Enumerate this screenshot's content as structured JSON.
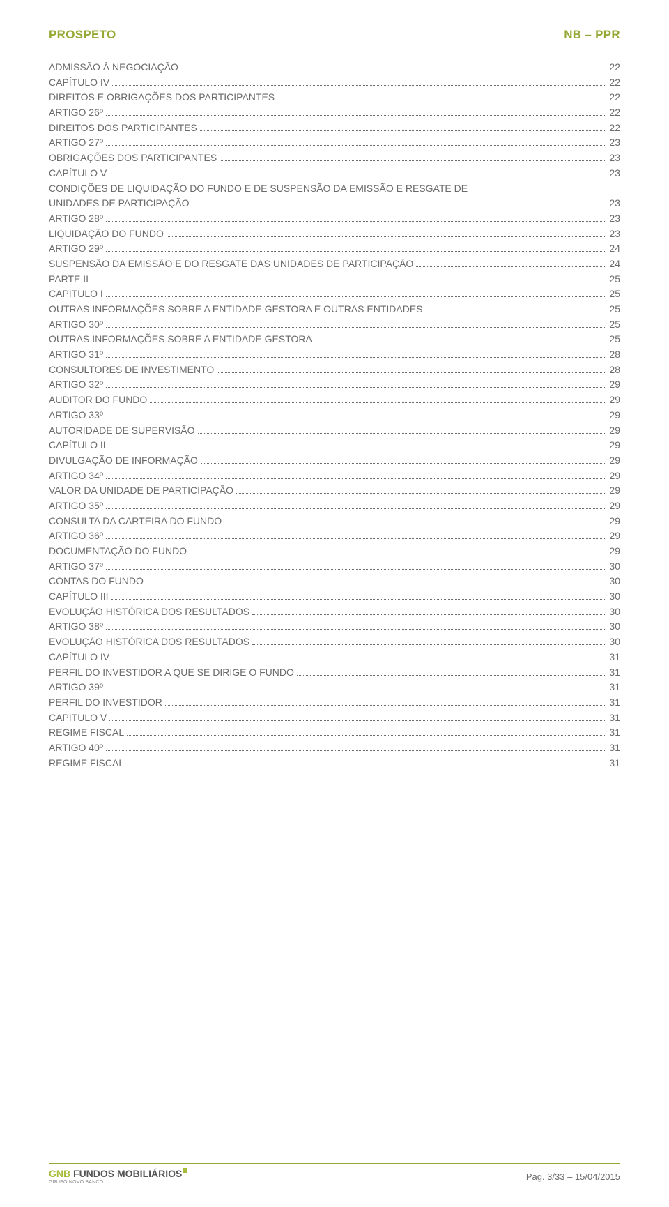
{
  "header": {
    "left": "PROSPETO",
    "right": "NB – PPR"
  },
  "toc": [
    {
      "label": "ADMISSÃO À NEGOCIAÇÃO",
      "page": "22"
    },
    {
      "label": "CAPÍTULO IV",
      "page": "22"
    },
    {
      "label": "DIREITOS E OBRIGAÇÕES DOS PARTICIPANTES",
      "page": "22"
    },
    {
      "label": "ARTIGO 26º",
      "page": "22"
    },
    {
      "label": "DIREITOS DOS PARTICIPANTES",
      "page": "22"
    },
    {
      "label": "ARTIGO 27º",
      "page": "23"
    },
    {
      "label": "OBRIGAÇÕES DOS PARTICIPANTES",
      "page": "23"
    },
    {
      "label": "CAPÍTULO V",
      "page": "23"
    },
    {
      "label": "CONDIÇÕES DE LIQUIDAÇÃO DO FUNDO E DE SUSPENSÃO DA EMISSÃO E RESGATE DE",
      "page": null
    },
    {
      "label": "UNIDADES DE PARTICIPAÇÃO",
      "page": "23"
    },
    {
      "label": "ARTIGO 28º",
      "page": "23"
    },
    {
      "label": "LIQUIDAÇÃO DO FUNDO",
      "page": "23"
    },
    {
      "label": "ARTIGO 29º",
      "page": "24"
    },
    {
      "label": "SUSPENSÃO DA EMISSÃO E DO RESGATE DAS UNIDADES DE PARTICIPAÇÃO",
      "page": "24"
    },
    {
      "label": "PARTE II",
      "page": "25"
    },
    {
      "label": "CAPÍTULO I",
      "page": "25"
    },
    {
      "label": "OUTRAS INFORMAÇÕES SOBRE A ENTIDADE GESTORA E OUTRAS ENTIDADES",
      "page": "25"
    },
    {
      "label": "ARTIGO 30º",
      "page": "25"
    },
    {
      "label": "OUTRAS INFORMAÇÕES SOBRE A ENTIDADE GESTORA",
      "page": "25"
    },
    {
      "label": "ARTIGO 31º",
      "page": "28"
    },
    {
      "label": "CONSULTORES DE INVESTIMENTO",
      "page": "28"
    },
    {
      "label": "ARTIGO 32º",
      "page": "29"
    },
    {
      "label": "AUDITOR DO FUNDO",
      "page": "29"
    },
    {
      "label": "ARTIGO 33º",
      "page": "29"
    },
    {
      "label": "AUTORIDADE DE SUPERVISÃO",
      "page": "29"
    },
    {
      "label": "CAPÍTULO II",
      "page": "29"
    },
    {
      "label": "DIVULGAÇÃO DE INFORMAÇÃO",
      "page": "29"
    },
    {
      "label": "ARTIGO 34º",
      "page": "29"
    },
    {
      "label": "VALOR DA UNIDADE DE PARTICIPAÇÃO",
      "page": "29"
    },
    {
      "label": "ARTIGO 35º",
      "page": "29"
    },
    {
      "label": "CONSULTA DA CARTEIRA DO FUNDO",
      "page": "29"
    },
    {
      "label": "ARTIGO 36º",
      "page": "29"
    },
    {
      "label": "DOCUMENTAÇÃO DO FUNDO",
      "page": "29"
    },
    {
      "label": "ARTIGO 37º",
      "page": "30"
    },
    {
      "label": "CONTAS DO FUNDO",
      "page": "30"
    },
    {
      "label": "CAPÍTULO III",
      "page": "30"
    },
    {
      "label": "EVOLUÇÃO HISTÓRICA DOS RESULTADOS",
      "page": "30"
    },
    {
      "label": "ARTIGO 38º",
      "page": "30"
    },
    {
      "label": "EVOLUÇÃO HISTÓRICA DOS RESULTADOS",
      "page": "30"
    },
    {
      "label": "CAPÍTULO IV",
      "page": "31"
    },
    {
      "label": "PERFIL DO INVESTIDOR A QUE SE DIRIGE O FUNDO",
      "page": "31"
    },
    {
      "label": "ARTIGO 39º",
      "page": "31"
    },
    {
      "label": "PERFIL DO INVESTIDOR",
      "page": "31"
    },
    {
      "label": "CAPÍTULO V",
      "page": "31"
    },
    {
      "label": "REGIME FISCAL",
      "page": "31"
    },
    {
      "label": "ARTIGO 40º",
      "page": "31"
    },
    {
      "label": "REGIME FISCAL",
      "page": "31"
    }
  ],
  "footer": {
    "logo_gnb": "GNB",
    "logo_fundos": " FUNDOS MOBILIÁRIOS",
    "logo_sub": "GRUPO NOVO BANCO",
    "page_info": "Pag. 3/33 – 15/04/2015"
  },
  "colors": {
    "accent": "#95a834",
    "text": "#6b6b6b",
    "logo_green": "#a9bd3d",
    "logo_dark": "#555"
  }
}
